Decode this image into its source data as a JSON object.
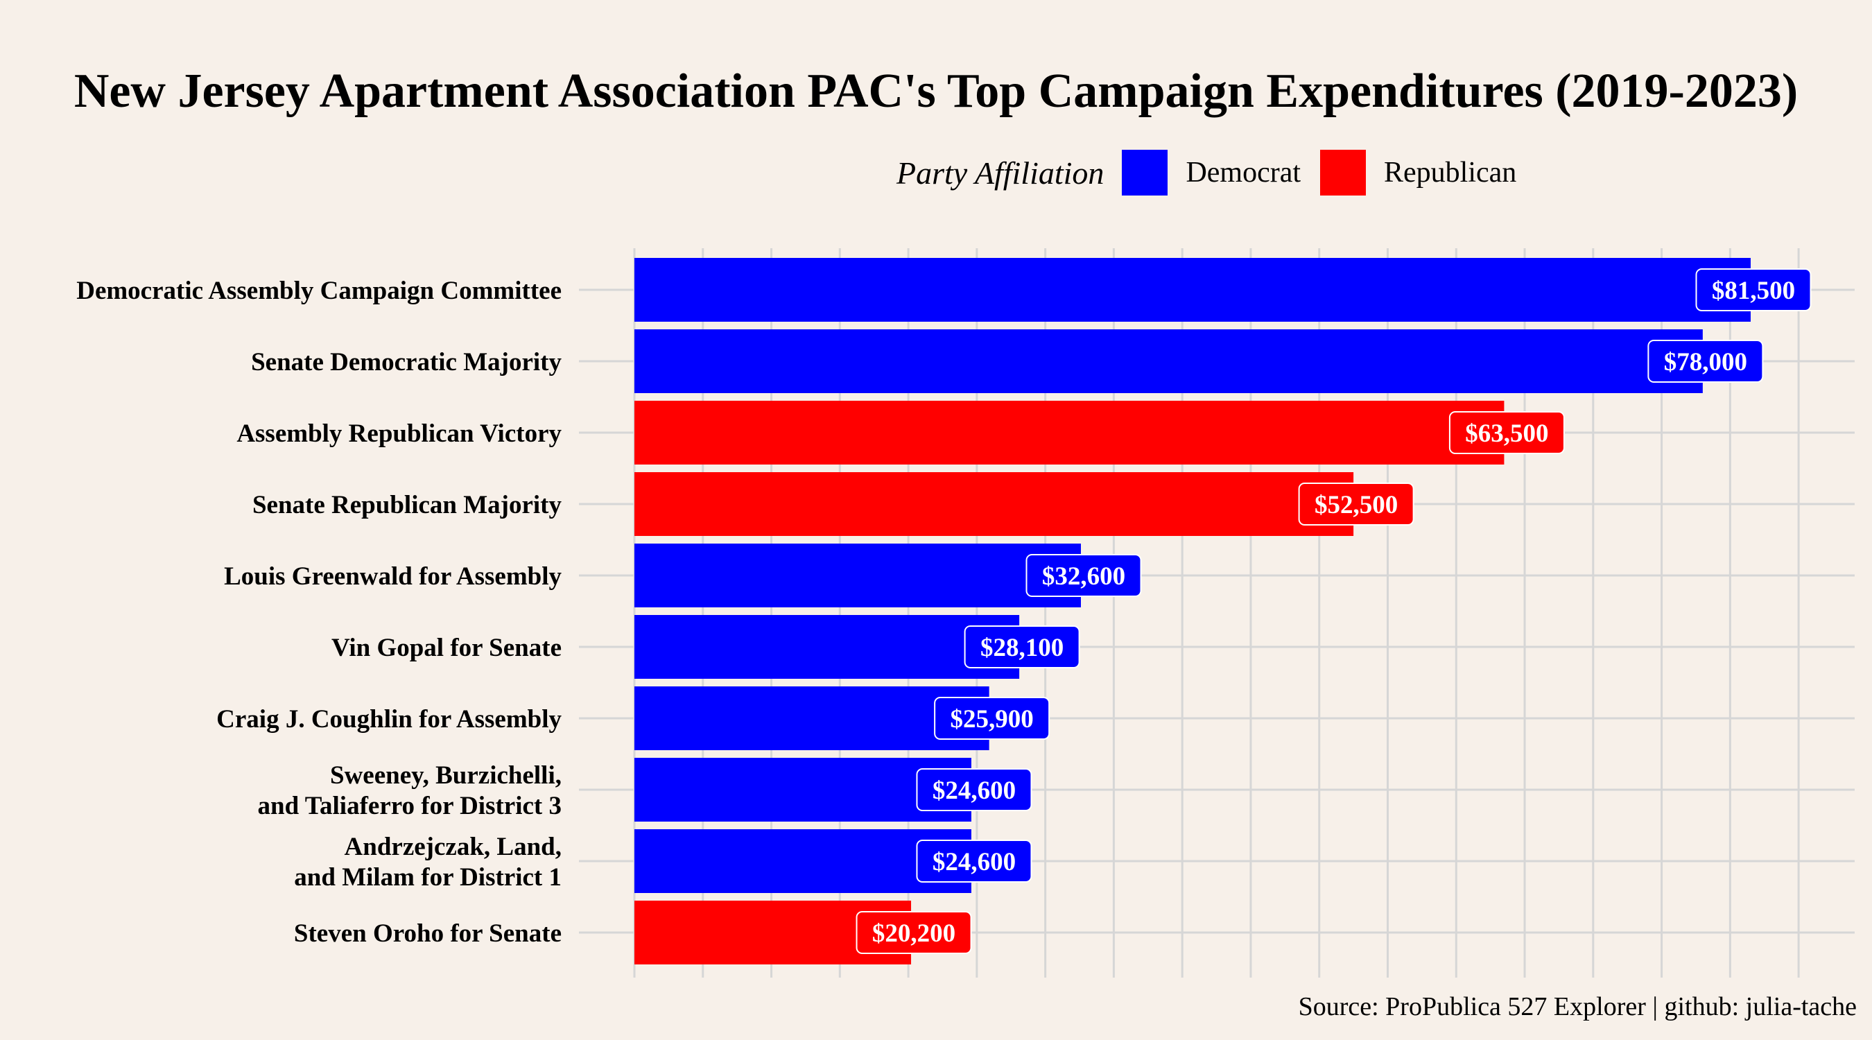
{
  "chart_data": {
    "type": "bar",
    "orientation": "horizontal",
    "title": "New Jersey Apartment Association PAC's Top Campaign Expenditures (2019-2023)",
    "legend": {
      "title": "Party Affiliation",
      "placement": "top",
      "entries": [
        {
          "name": "Democrat",
          "color": "#0000ff"
        },
        {
          "name": "Republican",
          "color": "#ff0000"
        }
      ]
    },
    "categories": [
      [
        "Democratic Assembly Campaign Committee"
      ],
      [
        "Senate Democratic Majority"
      ],
      [
        "Assembly Republican Victory"
      ],
      [
        "Senate Republican Majority"
      ],
      [
        "Louis Greenwald for Assembly"
      ],
      [
        "Vin Gopal for Senate"
      ],
      [
        "Craig J. Coughlin for Assembly"
      ],
      [
        "Sweeney, Burzichelli,",
        "and Taliaferro for District 3"
      ],
      [
        "Andrzejczak, Land,",
        "and Milam for District 1"
      ],
      [
        "Steven Oroho for Senate"
      ]
    ],
    "values": [
      81500,
      78000,
      63500,
      52500,
      32600,
      28100,
      25900,
      24600,
      24600,
      20200
    ],
    "value_labels": [
      "$81,500",
      "$78,000",
      "$63,500",
      "$52,500",
      "$32,600",
      "$28,100",
      "$25,900",
      "$24,600",
      "$24,600",
      "$20,200"
    ],
    "parties": [
      "Democrat",
      "Democrat",
      "Republican",
      "Republican",
      "Democrat",
      "Democrat",
      "Democrat",
      "Democrat",
      "Democrat",
      "Republican"
    ],
    "xlim": [
      0,
      88000
    ],
    "grid_step": 10000,
    "xlabel": "",
    "ylabel": "",
    "grid": true
  },
  "caption": "Source: ProPublica 527 Explorer | github: julia-tache"
}
